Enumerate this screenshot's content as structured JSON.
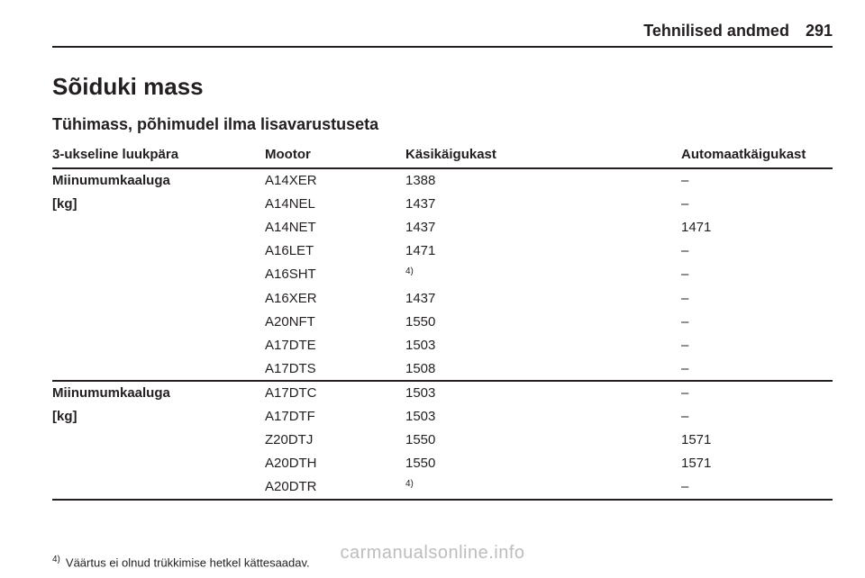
{
  "header": {
    "section_title": "Tehnilised andmed",
    "page_number": "291"
  },
  "titles": {
    "h1": "Sõiduki mass",
    "h2": "Tühimass, põhimudel ilma lisavarustuseta"
  },
  "table": {
    "columns": {
      "c0": "3-ukseline luukpära",
      "c1": "Mootor",
      "c2": "Käsikäigukast",
      "c3": "Automaatkäigukast"
    },
    "group1": {
      "label_line1": "Miinumumkaaluga",
      "label_line2": "[kg]",
      "rows": {
        "r0": {
          "engine": "A14XER",
          "manual": "1388",
          "auto": "–"
        },
        "r1": {
          "engine": "A14NEL",
          "manual": "1437",
          "auto": "–"
        },
        "r2": {
          "engine": "A14NET",
          "manual": "1437",
          "auto": "1471"
        },
        "r3": {
          "engine": "A16LET",
          "manual": "1471",
          "auto": "–"
        },
        "r4": {
          "engine": "A16SHT",
          "manual_sup": "4)",
          "auto": "–"
        },
        "r5": {
          "engine": "A16XER",
          "manual": "1437",
          "auto": "–"
        },
        "r6": {
          "engine": "A20NFT",
          "manual": "1550",
          "auto": "–"
        },
        "r7": {
          "engine": "A17DTE",
          "manual": "1503",
          "auto": "–"
        },
        "r8": {
          "engine": "A17DTS",
          "manual": "1508",
          "auto": "–"
        }
      }
    },
    "group2": {
      "label_line1": "Miinumumkaaluga",
      "label_line2": "[kg]",
      "rows": {
        "r0": {
          "engine": "A17DTC",
          "manual": "1503",
          "auto": "–"
        },
        "r1": {
          "engine": "A17DTF",
          "manual": "1503",
          "auto": "–"
        },
        "r2": {
          "engine": "Z20DTJ",
          "manual": "1550",
          "auto": "1571"
        },
        "r3": {
          "engine": "A20DTH",
          "manual": "1550",
          "auto": "1571"
        },
        "r4": {
          "engine": "A20DTR",
          "manual_sup": "4)",
          "auto": "–"
        }
      }
    }
  },
  "footnote": {
    "num": "4)",
    "text": "Väärtus ei olnud trükkimise hetkel kättesaadav."
  },
  "watermark": "carmanualsonline.info"
}
